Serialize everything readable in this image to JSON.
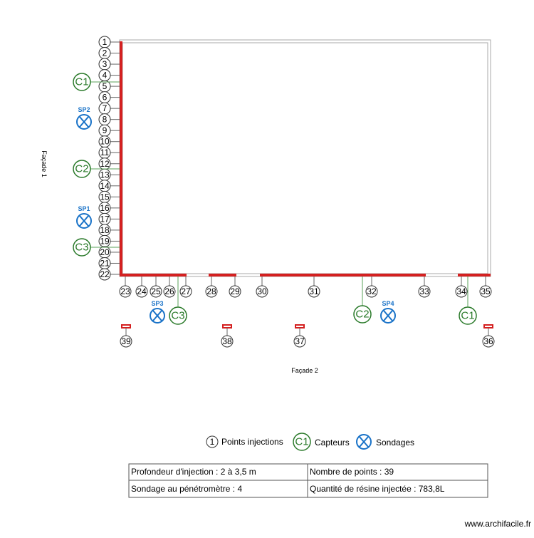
{
  "facades": [
    "Façade 1",
    "Façade 2"
  ],
  "points": [
    "1",
    "2",
    "3",
    "4",
    "5",
    "6",
    "7",
    "8",
    "9",
    "10",
    "11",
    "12",
    "13",
    "14",
    "15",
    "16",
    "17",
    "18",
    "19",
    "20",
    "21",
    "22",
    "23",
    "24",
    "25",
    "26",
    "27",
    "28",
    "29",
    "30",
    "31",
    "32",
    "33",
    "34",
    "35",
    "36",
    "37",
    "38",
    "39"
  ],
  "sensors": [
    "C1",
    "C2",
    "C3",
    "C3",
    "C2",
    "C1"
  ],
  "soundings": [
    "SP2",
    "SP1",
    "SP3",
    "SP4"
  ],
  "legend": {
    "points": {
      "symbol": "1",
      "label": "Points injections"
    },
    "sensors": {
      "symbol": "C1",
      "label": "Capteurs"
    },
    "soundings": {
      "label": "Sondages"
    }
  },
  "table": {
    "rows": [
      [
        "Profondeur d'injection : 2 à 3,5 m",
        "Nombre de points : 39"
      ],
      [
        "Sondage au pénétromètre : 4",
        "Quantité de résine injectée : 783,8L"
      ]
    ]
  },
  "watermark": "www.archifacile.fr"
}
